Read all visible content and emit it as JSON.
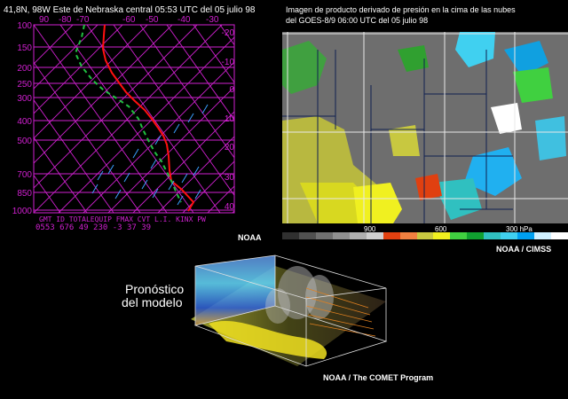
{
  "skewt": {
    "header": "41,8N, 98W  Este de Nebraska central 05:53 UTC del 05 julio 98",
    "temp_ticks": [
      "90",
      "-80",
      "-70",
      "-60",
      "-50",
      "-40",
      "-30"
    ],
    "pressure_ticks": [
      "100",
      "150",
      "200",
      "250",
      "300",
      "400",
      "500",
      "700",
      "850",
      "1000"
    ],
    "right_ticks": [
      "-20",
      "-10",
      "0",
      "10",
      "20",
      "30",
      "40"
    ],
    "index_labels": "GMT  ID   TOTALEQUIP FMAX CVT L.I. KINX PW",
    "index_values": "0553 676    49  230          -3   37 39",
    "credit": "NOAA",
    "colors": {
      "grid": "#d020d0",
      "temperature": "#ff1010",
      "dewpoint": "#20c040",
      "wind": "#3aa0ff",
      "text": "#d020d0"
    }
  },
  "satellite": {
    "title_line1": "Imagen de producto derivado de presión en la cima de las nubes",
    "title_line2": "del GOES-8/9 06:00 UTC del 05 julio 98",
    "scale_labels": [
      "900",
      "600",
      "300 hPa"
    ],
    "scale_colors": [
      "#303030",
      "#505050",
      "#707070",
      "#909090",
      "#b0b0b0",
      "#d0d0d0",
      "#e04010",
      "#f08040",
      "#c8c840",
      "#f0f020",
      "#40d040",
      "#10a030",
      "#30c0c0",
      "#40d0f0",
      "#00a0f0",
      "#d0f0ff",
      "#ffffff"
    ],
    "credit": "NOAA / CIMSS"
  },
  "model": {
    "label_line1": "Pronóstico",
    "label_line2": "del modelo",
    "credit": "NOAA / The COMET Program"
  }
}
